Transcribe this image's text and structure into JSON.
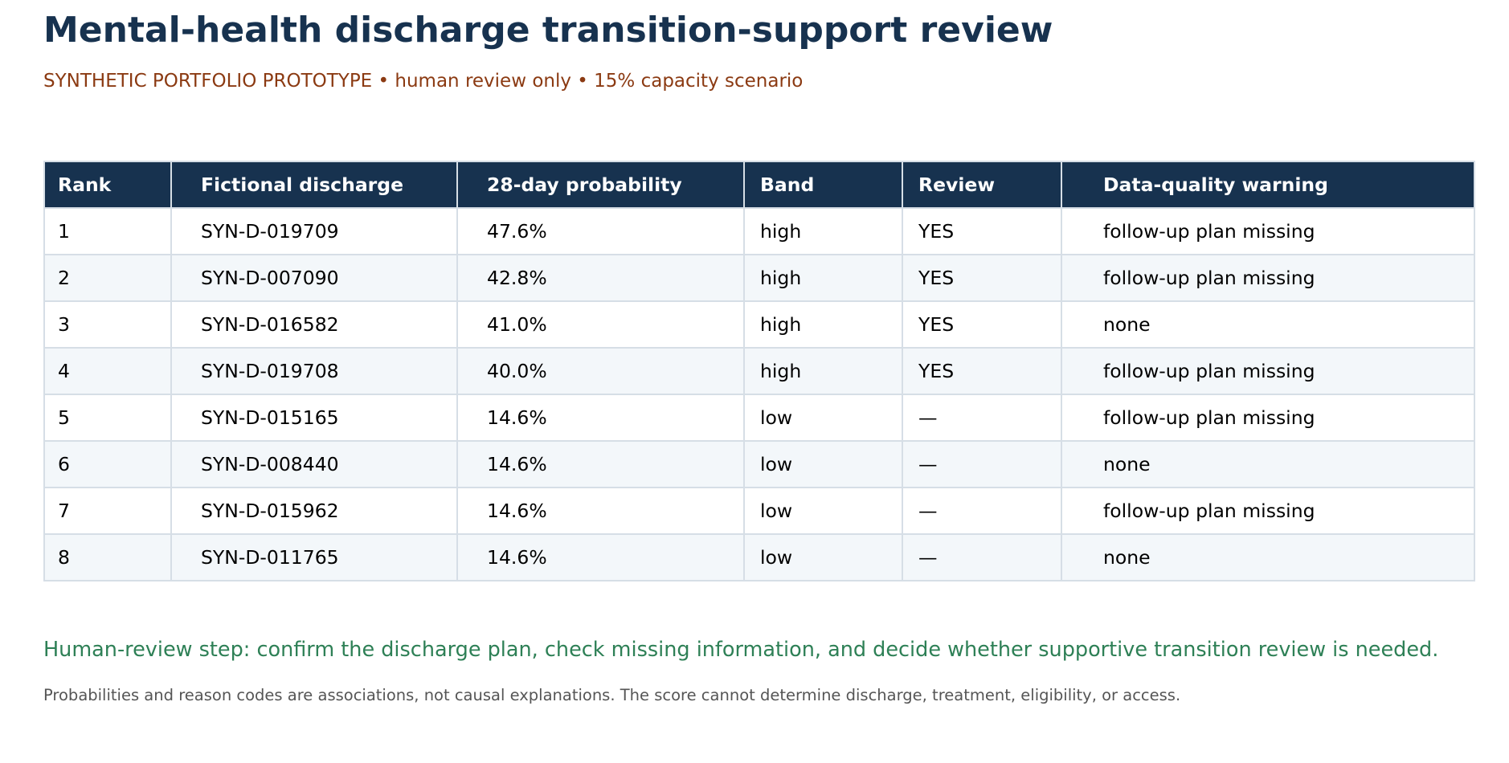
{
  "page": {
    "title": "Mental-health discharge transition-support review",
    "subtitle": "SYNTHETIC PORTFOLIO PROTOTYPE • human review only • 15% capacity scenario"
  },
  "table": {
    "headers": [
      "Rank",
      "Fictional discharge",
      "28-day probability",
      "Band",
      "Review",
      "Data-quality warning"
    ],
    "rows": [
      [
        "1",
        "SYN-D-019709",
        "47.6%",
        "high",
        "YES",
        "follow-up plan missing"
      ],
      [
        "2",
        "SYN-D-007090",
        "42.8%",
        "high",
        "YES",
        "follow-up plan missing"
      ],
      [
        "3",
        "SYN-D-016582",
        "41.0%",
        "high",
        "YES",
        "none"
      ],
      [
        "4",
        "SYN-D-019708",
        "40.0%",
        "high",
        "YES",
        "follow-up plan missing"
      ],
      [
        "5",
        "SYN-D-015165",
        "14.6%",
        "low",
        "—",
        "follow-up plan missing"
      ],
      [
        "6",
        "SYN-D-008440",
        "14.6%",
        "low",
        "—",
        "none"
      ],
      [
        "7",
        "SYN-D-015962",
        "14.6%",
        "low",
        "—",
        "follow-up plan missing"
      ],
      [
        "8",
        "SYN-D-011765",
        "14.6%",
        "low",
        "—",
        "none"
      ]
    ]
  },
  "footer": {
    "review_step": "Human-review step: confirm the discharge plan, check missing information, and decide whether supportive transition review is needed.",
    "disclaimer": "Probabilities and reason codes are associations, not causal explanations. The score cannot determine discharge, treatment, eligibility, or access."
  },
  "colors": {
    "header_bg": "#17324f",
    "title": "#17324f",
    "subtitle": "#8b3a12",
    "review_step": "#2e8056",
    "disclaimer": "#555555",
    "row_alt": "#f3f7fa",
    "grid": "#d6dee6"
  }
}
